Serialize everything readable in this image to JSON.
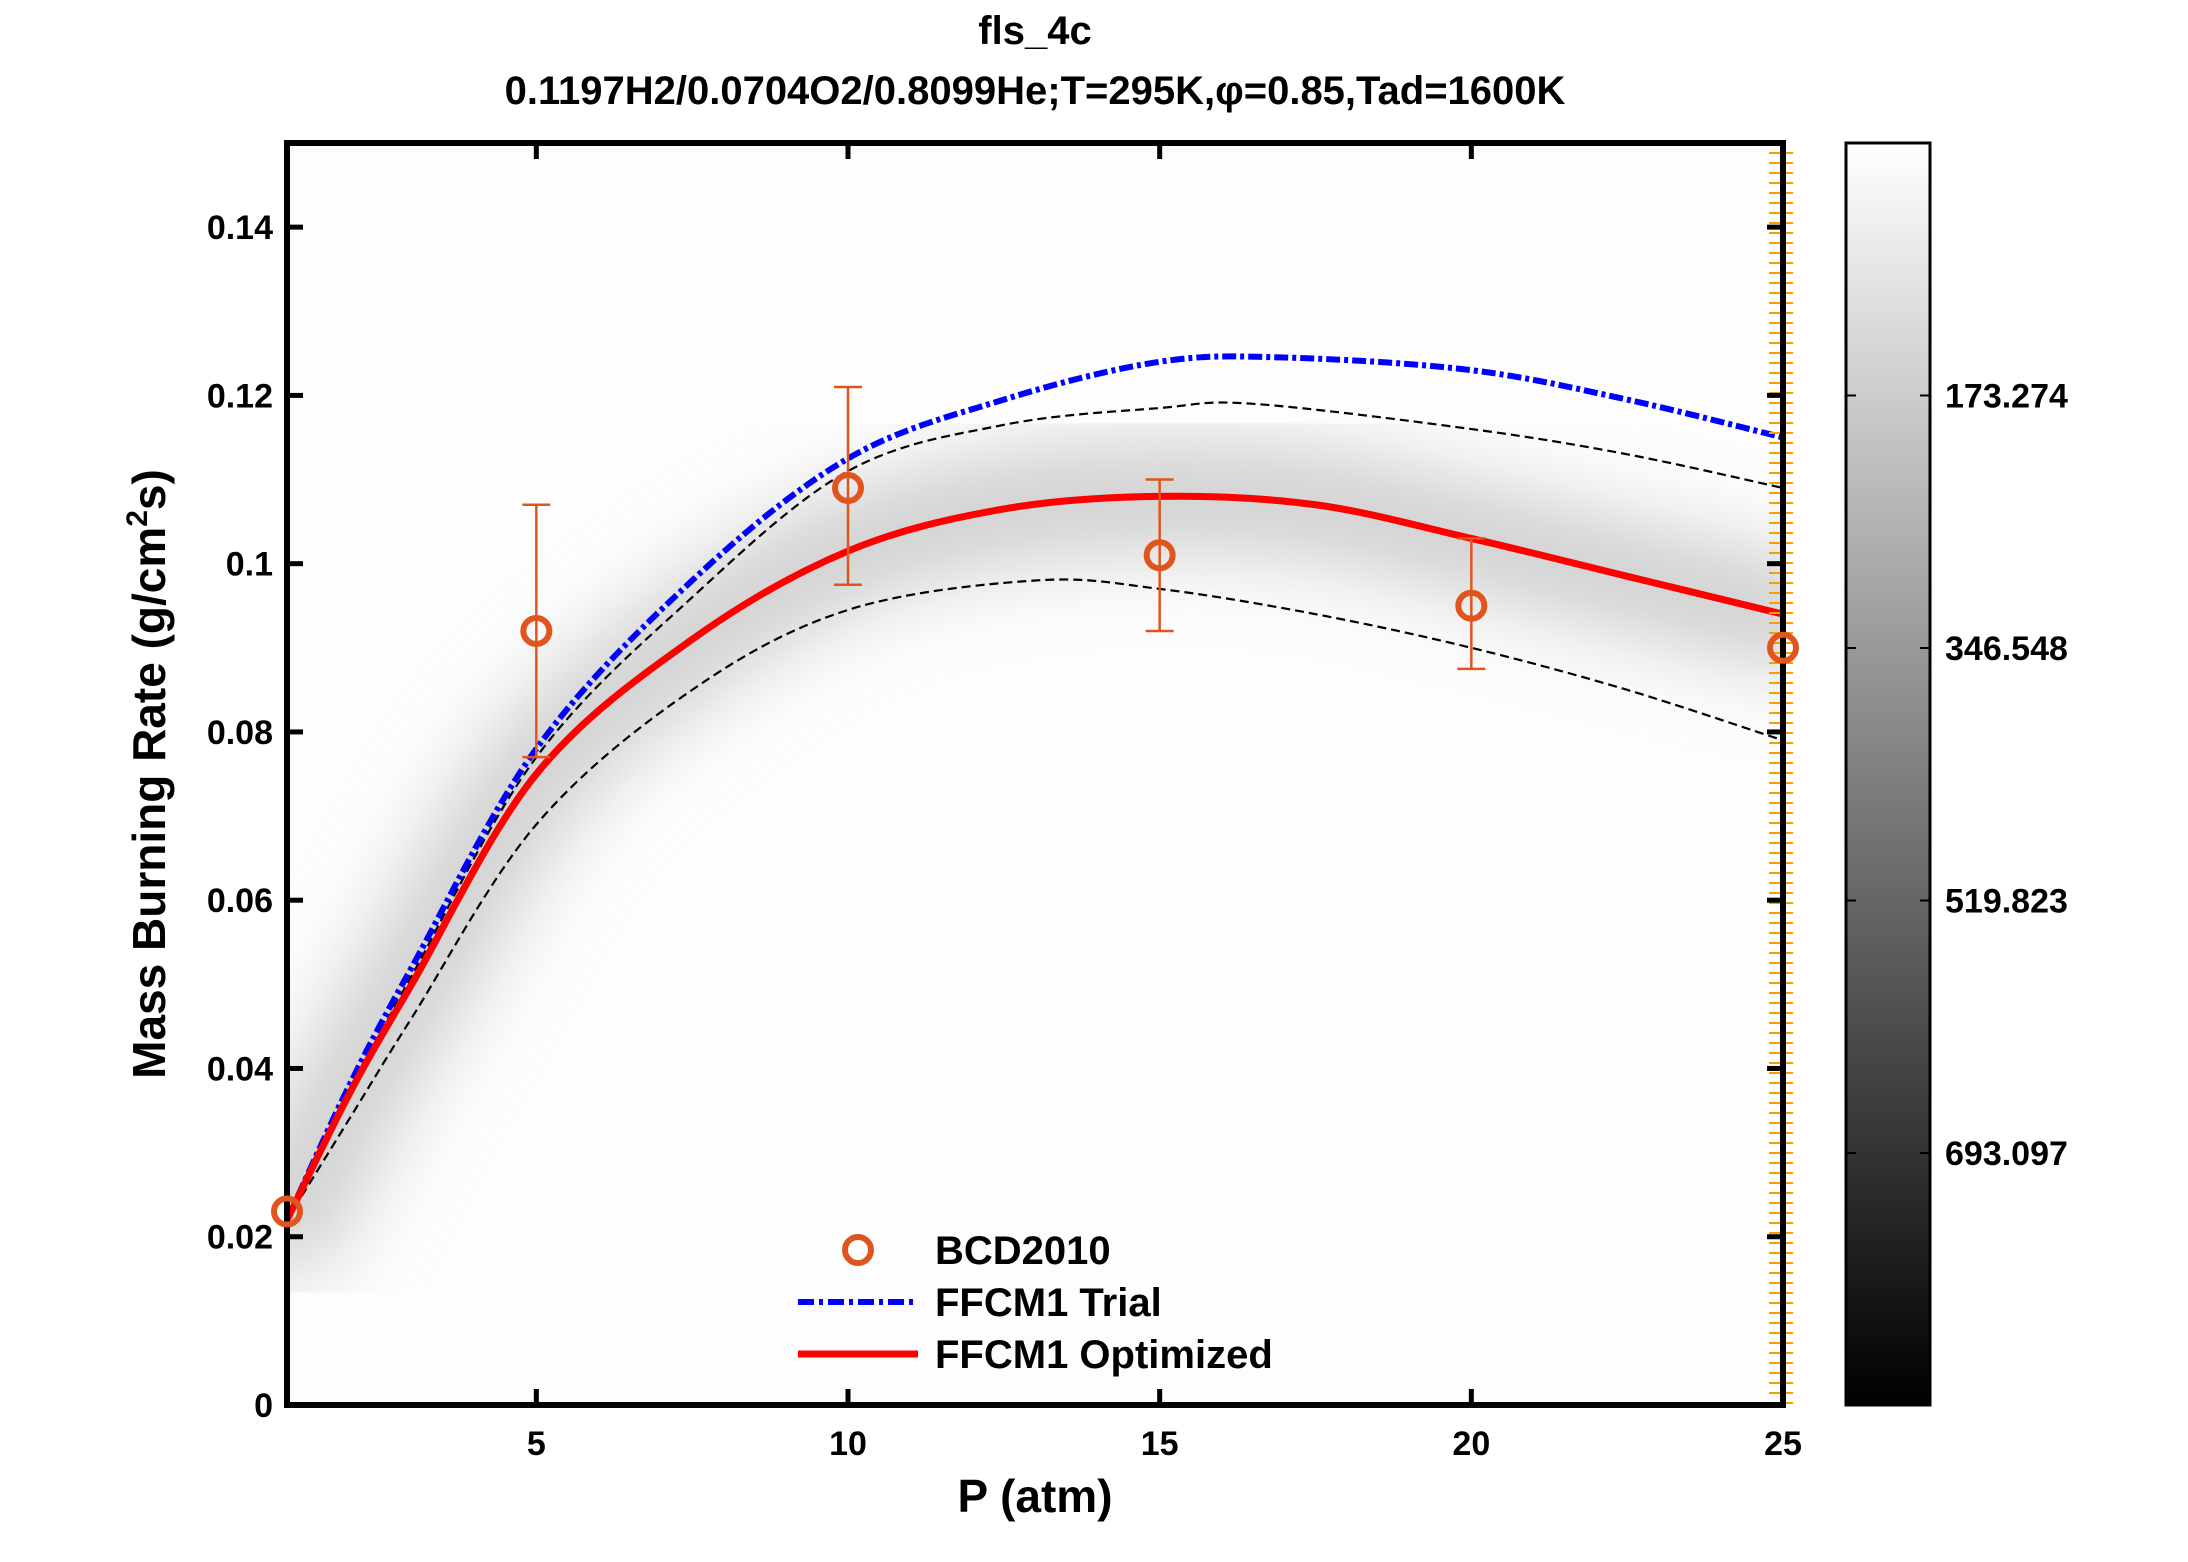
{
  "chart_data": {
    "type": "line",
    "title": "fls_4c",
    "subtitle": "0.1197H2/0.0704O2/0.8099He;T=295K,φ=0.85,Tad=1600K",
    "xlabel": "P (atm)",
    "ylabel_main": "Mass Burning Rate (g/cm",
    "ylabel_sup": "2",
    "ylabel_end": "s)",
    "xlim": [
      1,
      25
    ],
    "ylim": [
      0,
      0.15
    ],
    "xticks": [
      5,
      10,
      15,
      20,
      25
    ],
    "xtick_labels": [
      "5",
      "10",
      "15",
      "20",
      "25"
    ],
    "yticks": [
      0,
      0.02,
      0.04,
      0.06,
      0.08,
      0.1,
      0.12,
      0.14
    ],
    "ytick_labels": [
      "0",
      "0.02",
      "0.04",
      "0.06",
      "0.08",
      "0.1",
      "0.12",
      "0.14"
    ],
    "grid": false,
    "legend_position": "bottom-center",
    "colors": {
      "experiment": "#e0541e",
      "trial": "#0000ff",
      "optimized": "#ff0000",
      "uncertainty": "#000000",
      "right_ticks": "#f5a000"
    },
    "series": [
      {
        "name": "BCD2010",
        "kind": "scatter-errorbar",
        "x": [
          1,
          5,
          10,
          15,
          20,
          25
        ],
        "y": [
          0.023,
          0.092,
          0.109,
          0.101,
          0.095,
          0.09
        ],
        "err_low": [
          null,
          0.077,
          0.0975,
          0.092,
          0.0875,
          null
        ],
        "err_high": [
          null,
          0.107,
          0.121,
          0.11,
          0.103,
          null
        ]
      },
      {
        "name": "FFCM1 Trial",
        "kind": "dash-dot",
        "x": [
          1,
          2,
          3,
          5,
          7.5,
          10,
          12.5,
          15,
          17,
          20,
          22.5,
          25
        ],
        "y": [
          0.022,
          0.038,
          0.052,
          0.078,
          0.098,
          0.1125,
          0.1195,
          0.124,
          0.1245,
          0.123,
          0.1195,
          0.115
        ]
      },
      {
        "name": "FFCM1 Optimized",
        "kind": "solid",
        "x": [
          1,
          2,
          3,
          5,
          7.5,
          10,
          12.5,
          15,
          17.5,
          20,
          22.5,
          25
        ],
        "y": [
          0.022,
          0.037,
          0.05,
          0.075,
          0.091,
          0.1015,
          0.1065,
          0.108,
          0.107,
          0.103,
          0.0985,
          0.094
        ]
      },
      {
        "kind": "dashed-upper",
        "x": [
          1,
          2,
          3,
          5,
          7.5,
          10,
          12.5,
          15,
          16.5,
          20,
          22.5,
          25
        ],
        "y": [
          0.022,
          0.037,
          0.051,
          0.077,
          0.096,
          0.111,
          0.1165,
          0.1185,
          0.119,
          0.116,
          0.113,
          0.109
        ]
      },
      {
        "kind": "dashed-lower",
        "x": [
          1,
          2,
          3,
          5,
          7.5,
          10,
          13,
          15,
          17.5,
          20,
          22.5,
          25
        ],
        "y": [
          0.022,
          0.034,
          0.046,
          0.069,
          0.085,
          0.0945,
          0.098,
          0.097,
          0.094,
          0.09,
          0.085,
          0.079
        ]
      }
    ],
    "colorbar": {
      "colormap": "gray-reversed",
      "ticks": [
        173.274,
        346.548,
        519.823,
        693.097
      ],
      "tick_labels": [
        "173.274",
        "346.548",
        "519.823",
        "693.097"
      ],
      "range": [
        0,
        866
      ]
    }
  }
}
